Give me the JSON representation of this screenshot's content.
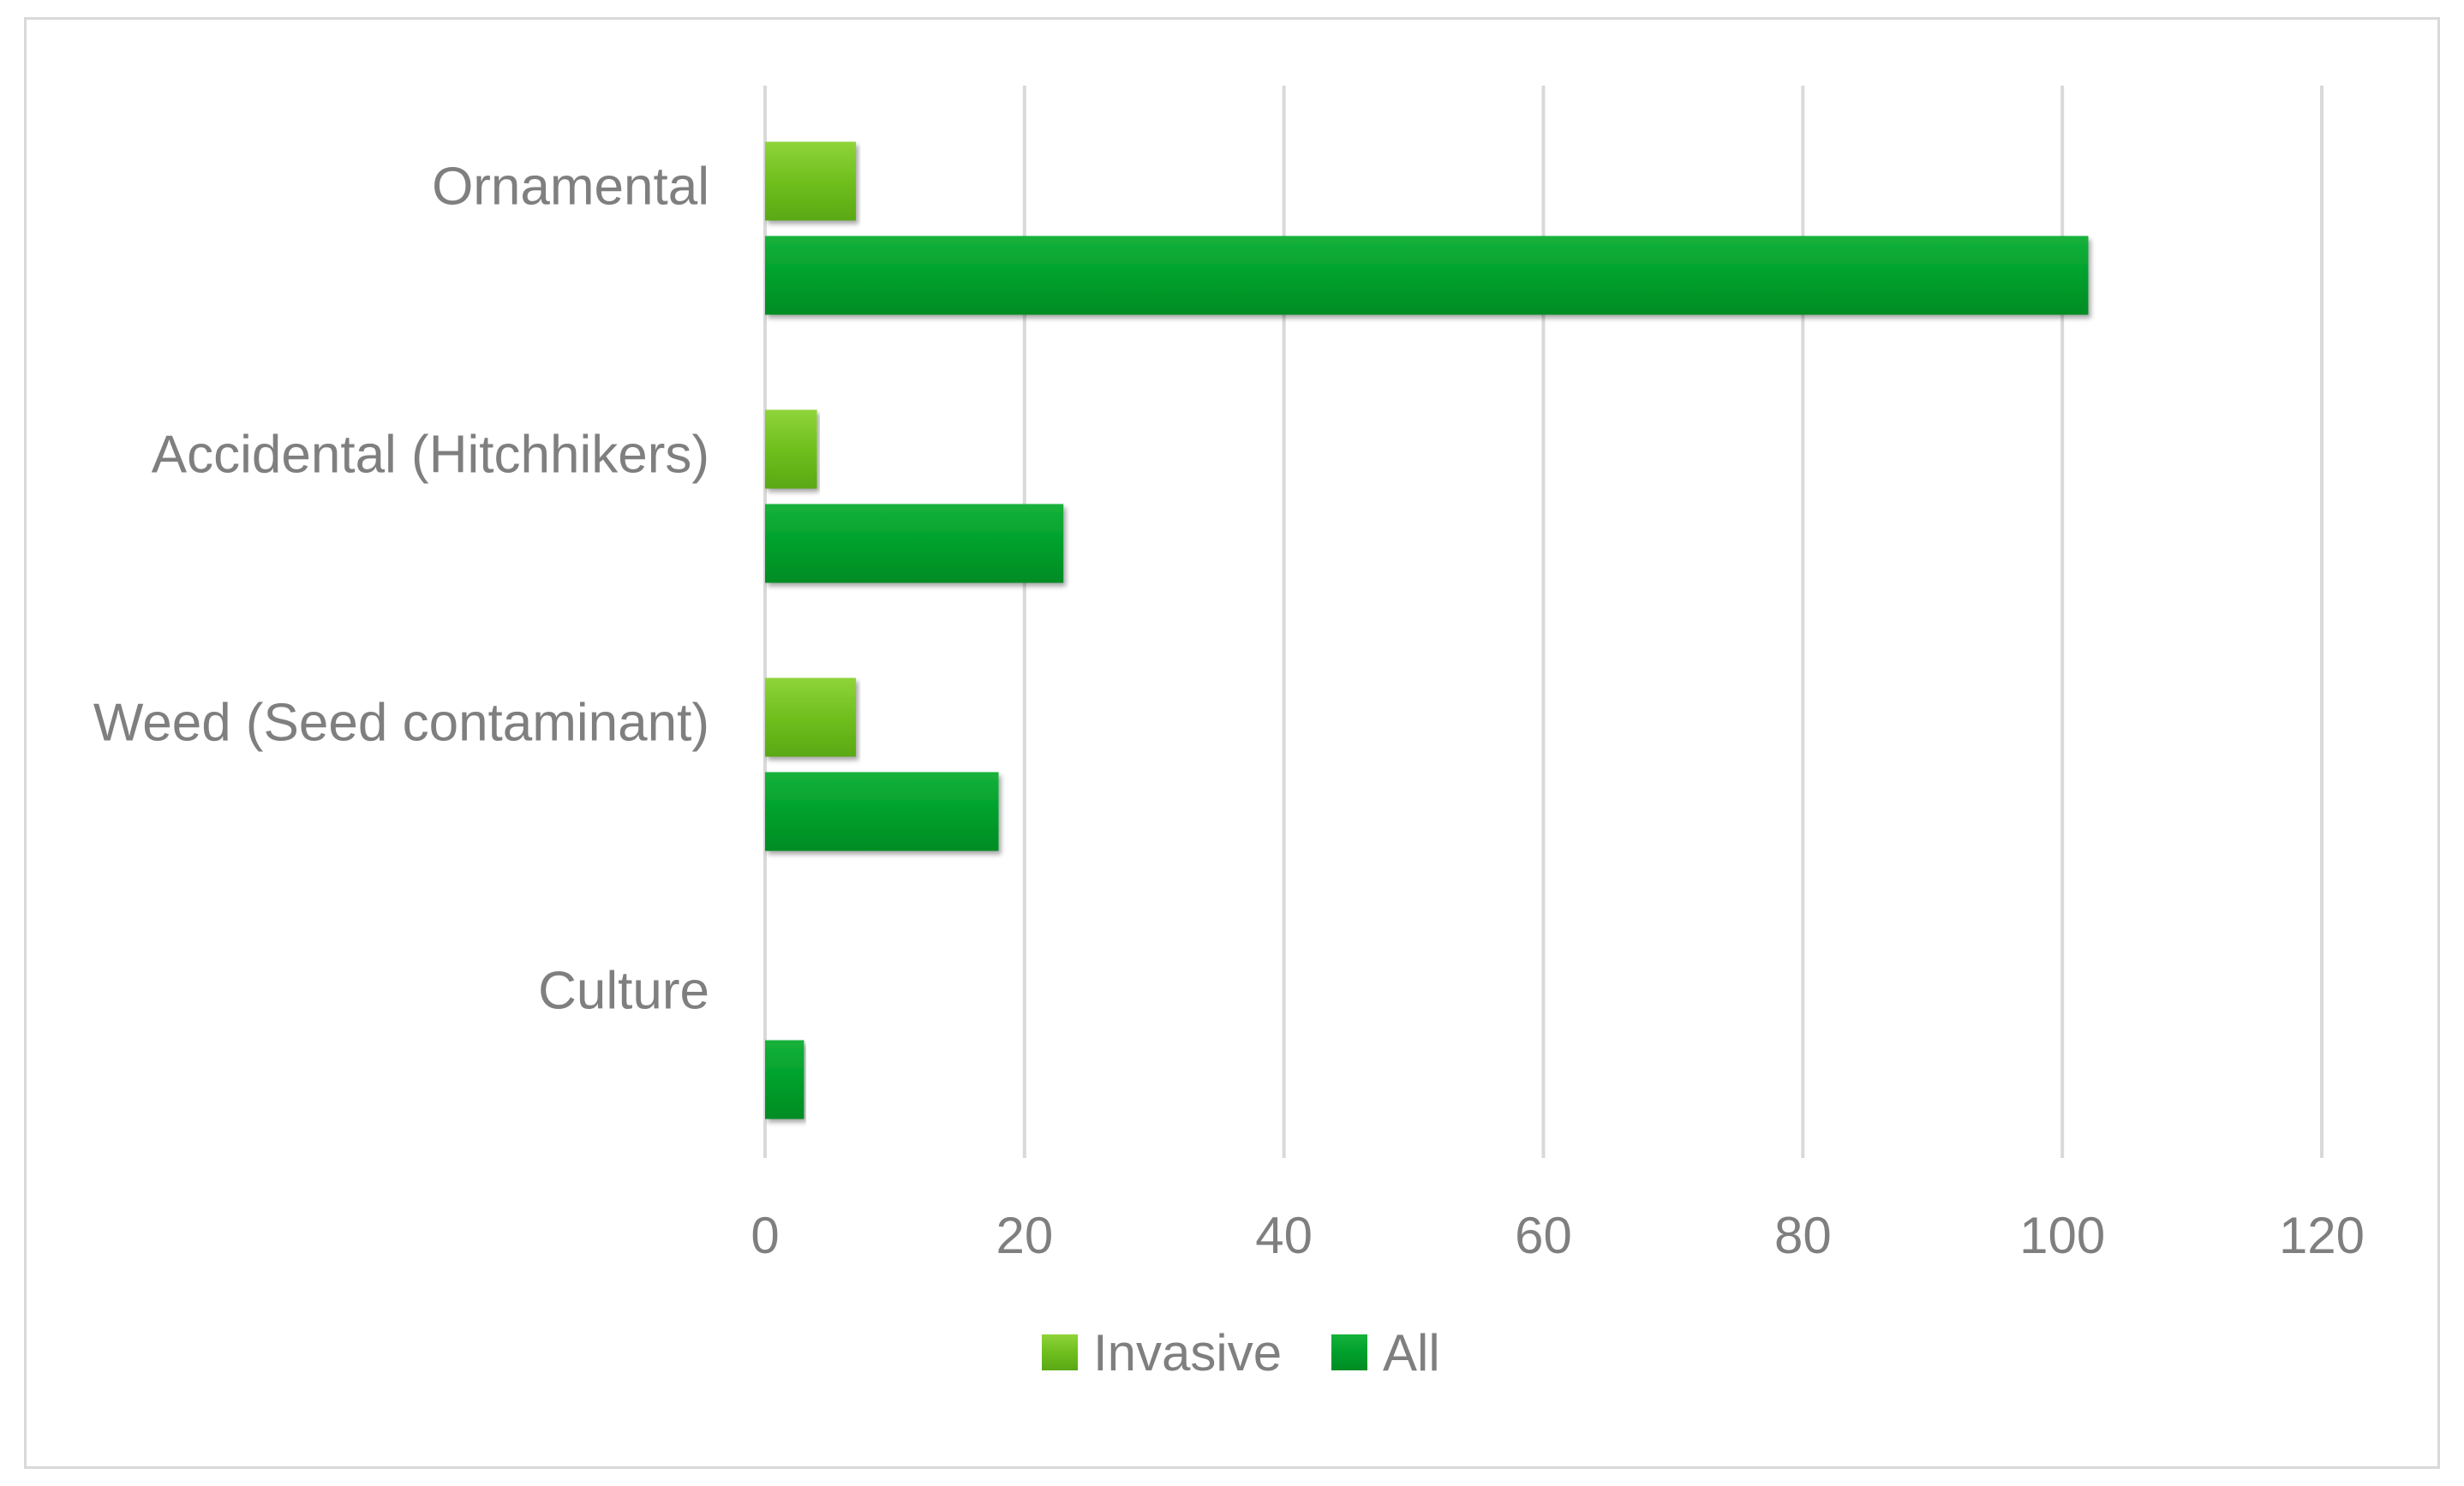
{
  "chart_data": {
    "type": "bar",
    "orientation": "horizontal",
    "title": "",
    "xlabel": "",
    "ylabel": "",
    "categories": [
      "Ornamental",
      "Accidental (Hitchhikers)",
      "Weed (Seed contaminant)",
      "Culture"
    ],
    "series": [
      {
        "name": "Invasive",
        "color": "#70bf1f",
        "values": [
          7,
          4,
          7,
          0
        ]
      },
      {
        "name": "All",
        "color": "#00a22e",
        "values": [
          102,
          23,
          18,
          3
        ]
      }
    ],
    "xlim": [
      0,
      120
    ],
    "x_ticks": [
      "0",
      "20",
      "40",
      "60",
      "80",
      "100",
      "120"
    ],
    "grid": "vertical",
    "legend_position": "bottom"
  }
}
